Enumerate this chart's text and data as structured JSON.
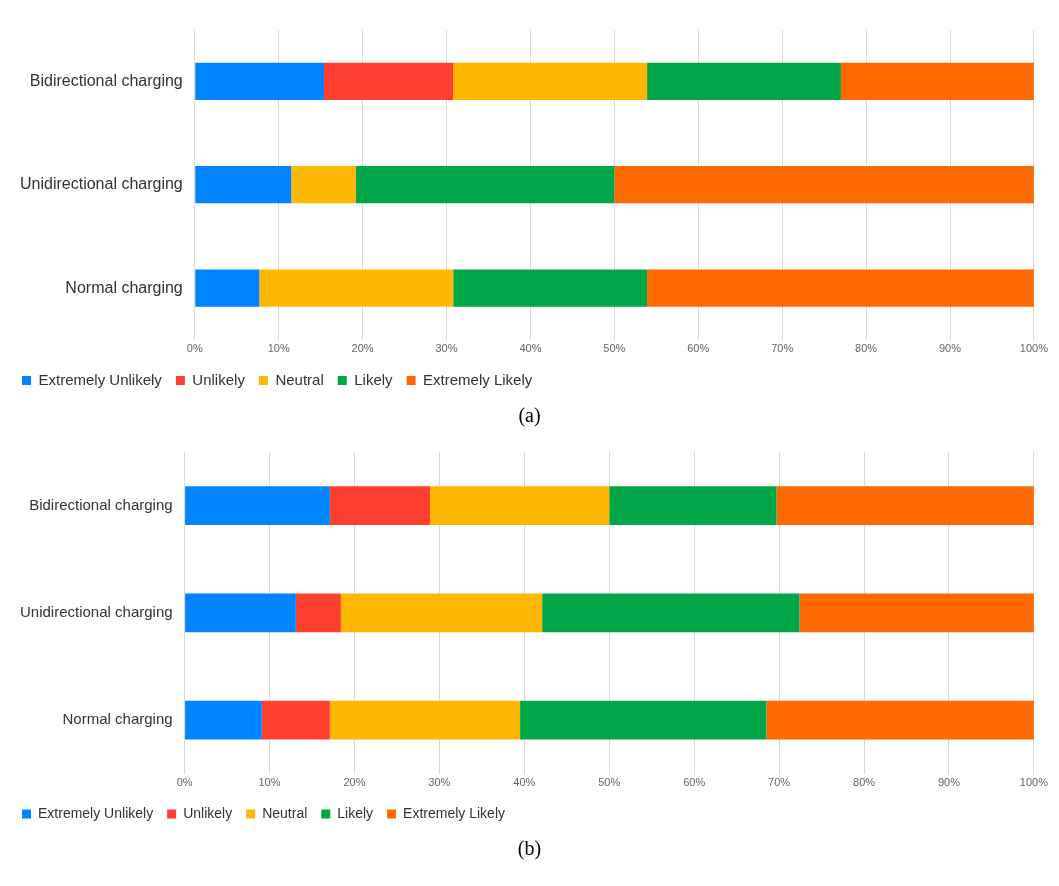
{
  "chart_data": [
    {
      "type": "bar",
      "orientation": "horizontal",
      "stacked": true,
      "categories": [
        "Bidirectional charging",
        "Unidirectional charging",
        "Normal charging"
      ],
      "series": [
        {
          "name": "Extremely Unlikely",
          "color": "#0084ff",
          "values": [
            15.4,
            11.5,
            7.7
          ]
        },
        {
          "name": "Unlikely",
          "color": "#ff4030",
          "values": [
            15.4,
            0,
            0
          ]
        },
        {
          "name": "Neutral",
          "color": "#ffb800",
          "values": [
            23.1,
            7.7,
            23.1
          ]
        },
        {
          "name": "Likely",
          "color": "#00a647",
          "values": [
            23.1,
            30.8,
            23.1
          ]
        },
        {
          "name": "Extremely Likely",
          "color": "#ff6a00",
          "values": [
            23.0,
            50.0,
            46.1
          ]
        }
      ],
      "xlim": [
        0,
        100
      ],
      "xticks": [
        {
          "value": 0,
          "label": "0%"
        },
        {
          "value": 10,
          "label": "10%"
        },
        {
          "value": 20,
          "label": "20%"
        },
        {
          "value": 30,
          "label": "30%"
        },
        {
          "value": 40,
          "label": "40%"
        },
        {
          "value": 50,
          "label": "50%"
        },
        {
          "value": 60,
          "label": "60%"
        },
        {
          "value": 70,
          "label": "70%"
        },
        {
          "value": 80,
          "label": "80%"
        },
        {
          "value": 90,
          "label": "90%"
        },
        {
          "value": 100,
          "label": "100%"
        }
      ],
      "grid": "x",
      "legend": "bottom",
      "annotations": [
        "(a)"
      ]
    },
    {
      "type": "bar",
      "orientation": "horizontal",
      "stacked": true,
      "categories": [
        "Bidirectional charging",
        "Unidirectional charging",
        "Normal charging"
      ],
      "series": [
        {
          "name": "Extremely Unlikely",
          "color": "#0084ff",
          "values": [
            17.1,
            13.1,
            9.1
          ]
        },
        {
          "name": "Unlikely",
          "color": "#ff4030",
          "values": [
            11.8,
            5.3,
            8.0
          ]
        },
        {
          "name": "Neutral",
          "color": "#ffb800",
          "values": [
            21.1,
            23.7,
            22.4
          ]
        },
        {
          "name": "Likely",
          "color": "#00a647",
          "values": [
            19.7,
            30.3,
            29.0
          ]
        },
        {
          "name": "Extremely Likely",
          "color": "#ff6a00",
          "values": [
            30.3,
            27.6,
            31.5
          ]
        }
      ],
      "xlim": [
        0,
        100
      ],
      "xticks": [
        {
          "value": 0,
          "label": "0%"
        },
        {
          "value": 10,
          "label": "10%"
        },
        {
          "value": 20,
          "label": "20%"
        },
        {
          "value": 30,
          "label": "30%"
        },
        {
          "value": 40,
          "label": "40%"
        },
        {
          "value": 50,
          "label": "50%"
        },
        {
          "value": 60,
          "label": "60%"
        },
        {
          "value": 70,
          "label": "70%"
        },
        {
          "value": 80,
          "label": "80%"
        },
        {
          "value": 90,
          "label": "90%"
        },
        {
          "value": 100,
          "label": "100%"
        }
      ],
      "grid": "x",
      "legend": "bottom",
      "annotations": [
        "(b)"
      ]
    }
  ]
}
